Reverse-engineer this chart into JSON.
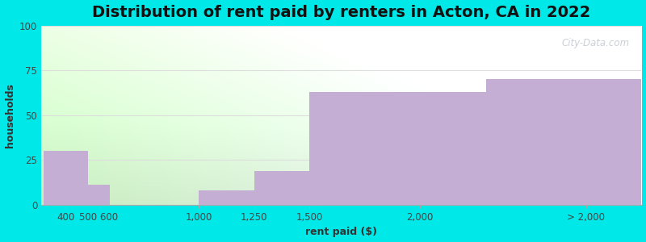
{
  "title": "Distribution of rent paid by renters in Acton, CA in 2022",
  "xlabel": "rent paid ($)",
  "ylabel": "households",
  "bar_color": "#c4aed4",
  "bar_edge_color": "#c4aed4",
  "figure_bg": "#00e8e8",
  "ylim": [
    0,
    100
  ],
  "yticks": [
    0,
    25,
    50,
    75,
    100
  ],
  "xtick_labels": [
    "400",
    "500 600",
    "1,000",
    "1,250",
    "1,500",
    "2,000",
    "> 2,000"
  ],
  "xtick_positions": [
    400,
    550,
    1000,
    1250,
    1500,
    2000,
    2750
  ],
  "bar_lefts": [
    300,
    500,
    1000,
    1250,
    1500,
    2300
  ],
  "bar_widths": [
    200,
    100,
    250,
    250,
    800,
    700
  ],
  "bar_heights": [
    30,
    11,
    8,
    19,
    63,
    70
  ],
  "xlim": [
    290,
    3000
  ],
  "title_fontsize": 14,
  "axis_label_fontsize": 9,
  "tick_fontsize": 8.5,
  "watermark_text": "City-Data.com",
  "grid_color": "#dddddd",
  "plot_bg_left": "#c8e8c0",
  "plot_bg_right": "#f0eef8"
}
